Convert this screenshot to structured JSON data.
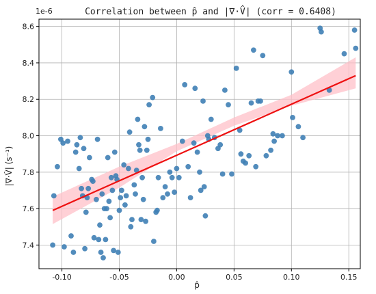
{
  "chart_data": {
    "type": "scatter",
    "title": "Correlation between p̂ and |∇·V̂| (corr = 0.6408)",
    "xlabel": "p̂",
    "ylabel": "|∇·V̂| (s⁻¹)",
    "y_offset_label": "1e-6",
    "xlim": [
      -0.12,
      0.16
    ],
    "ylim": [
      7.27,
      8.64
    ],
    "grid": true,
    "x_ticks": [
      -0.1,
      -0.05,
      0.0,
      0.05,
      0.1,
      0.15
    ],
    "x_tick_labels": [
      "-0.10",
      "-0.05",
      "0.00",
      "0.05",
      "0.10",
      "0.15"
    ],
    "y_ticks": [
      7.4,
      7.6,
      7.8,
      8.0,
      8.2,
      8.4,
      8.6
    ],
    "y_tick_labels": [
      "7.4",
      "7.6",
      "7.8",
      "8.0",
      "8.2",
      "8.4",
      "8.6"
    ],
    "series": [
      {
        "kind": "points",
        "color": "#3f7fb5",
        "points": [
          [
            -0.108,
            7.4
          ],
          [
            -0.107,
            7.67
          ],
          [
            -0.104,
            7.83
          ],
          [
            -0.101,
            7.98
          ],
          [
            -0.099,
            7.96
          ],
          [
            -0.098,
            7.39
          ],
          [
            -0.095,
            7.97
          ],
          [
            -0.092,
            7.45
          ],
          [
            -0.09,
            7.36
          ],
          [
            -0.088,
            7.91
          ],
          [
            -0.087,
            7.95
          ],
          [
            -0.085,
            7.82
          ],
          [
            -0.084,
            7.99
          ],
          [
            -0.083,
            7.71
          ],
          [
            -0.082,
            7.67
          ],
          [
            -0.081,
            7.93
          ],
          [
            -0.08,
            7.38
          ],
          [
            -0.079,
            7.58
          ],
          [
            -0.078,
            7.66
          ],
          [
            -0.077,
            7.71
          ],
          [
            -0.076,
            7.88
          ],
          [
            -0.074,
            7.76
          ],
          [
            -0.073,
            7.75
          ],
          [
            -0.072,
            7.44
          ],
          [
            -0.07,
            7.65
          ],
          [
            -0.069,
            7.98
          ],
          [
            -0.068,
            7.43
          ],
          [
            -0.067,
            7.51
          ],
          [
            -0.066,
            7.36
          ],
          [
            -0.065,
            7.68
          ],
          [
            -0.064,
            7.33
          ],
          [
            -0.063,
            7.6
          ],
          [
            -0.062,
            7.43
          ],
          [
            -0.061,
            7.6
          ],
          [
            -0.06,
            7.88
          ],
          [
            -0.059,
            7.64
          ],
          [
            -0.058,
            7.55
          ],
          [
            -0.057,
            7.77
          ],
          [
            -0.056,
            7.7
          ],
          [
            -0.055,
            7.37
          ],
          [
            -0.054,
            7.91
          ],
          [
            -0.053,
            7.78
          ],
          [
            -0.052,
            7.76
          ],
          [
            -0.051,
            7.36
          ],
          [
            -0.05,
            7.59
          ],
          [
            -0.049,
            7.66
          ],
          [
            -0.048,
            7.7
          ],
          [
            -0.046,
            7.84
          ],
          [
            -0.045,
            7.62
          ],
          [
            -0.044,
            7.67
          ],
          [
            -0.042,
            7.82
          ],
          [
            -0.041,
            8.02
          ],
          [
            -0.04,
            7.5
          ],
          [
            -0.039,
            7.54
          ],
          [
            -0.037,
            7.73
          ],
          [
            -0.036,
            7.68
          ],
          [
            -0.035,
            7.81
          ],
          [
            -0.034,
            8.09
          ],
          [
            -0.033,
            7.95
          ],
          [
            -0.032,
            7.92
          ],
          [
            -0.031,
            7.54
          ],
          [
            -0.03,
            7.77
          ],
          [
            -0.029,
            7.65
          ],
          [
            -0.028,
            8.05
          ],
          [
            -0.027,
            7.53
          ],
          [
            -0.026,
            7.92
          ],
          [
            -0.025,
            7.98
          ],
          [
            -0.024,
            8.17
          ],
          [
            -0.021,
            8.21
          ],
          [
            -0.02,
            7.42
          ],
          [
            -0.018,
            7.58
          ],
          [
            -0.017,
            7.59
          ],
          [
            -0.016,
            7.77
          ],
          [
            -0.014,
            8.04
          ],
          [
            -0.012,
            7.66
          ],
          [
            -0.01,
            7.72
          ],
          [
            -0.008,
            7.68
          ],
          [
            -0.006,
            7.8
          ],
          [
            -0.004,
            7.77
          ],
          [
            -0.002,
            7.69
          ],
          [
            0.0,
            7.82
          ],
          [
            0.002,
            7.77
          ],
          [
            0.005,
            7.97
          ],
          [
            0.007,
            8.28
          ],
          [
            0.01,
            7.83
          ],
          [
            0.012,
            7.66
          ],
          [
            0.015,
            7.96
          ],
          [
            0.016,
            8.26
          ],
          [
            0.018,
            7.91
          ],
          [
            0.02,
            7.8
          ],
          [
            0.021,
            7.7
          ],
          [
            0.023,
            8.19
          ],
          [
            0.024,
            7.72
          ],
          [
            0.025,
            7.56
          ],
          [
            0.027,
            8.0
          ],
          [
            0.028,
            7.98
          ],
          [
            0.03,
            8.09
          ],
          [
            0.033,
            7.99
          ],
          [
            0.036,
            7.93
          ],
          [
            0.038,
            7.95
          ],
          [
            0.04,
            7.79
          ],
          [
            0.042,
            8.25
          ],
          [
            0.045,
            8.17
          ],
          [
            0.048,
            7.79
          ],
          [
            0.052,
            8.37
          ],
          [
            0.055,
            8.03
          ],
          [
            0.056,
            7.9
          ],
          [
            0.058,
            7.86
          ],
          [
            0.06,
            7.85
          ],
          [
            0.063,
            7.89
          ],
          [
            0.065,
            8.18
          ],
          [
            0.067,
            8.47
          ],
          [
            0.069,
            7.83
          ],
          [
            0.071,
            8.19
          ],
          [
            0.073,
            8.19
          ],
          [
            0.075,
            8.44
          ],
          [
            0.078,
            7.89
          ],
          [
            0.082,
            7.92
          ],
          [
            0.084,
            8.01
          ],
          [
            0.085,
            7.97
          ],
          [
            0.088,
            8.0
          ],
          [
            0.092,
            8.0
          ],
          [
            0.1,
            8.35
          ],
          [
            0.101,
            8.1
          ],
          [
            0.106,
            8.05
          ],
          [
            0.11,
            7.99
          ],
          [
            0.125,
            8.59
          ],
          [
            0.126,
            8.57
          ],
          [
            0.133,
            8.25
          ],
          [
            0.146,
            8.45
          ],
          [
            0.155,
            8.58
          ],
          [
            0.156,
            8.48
          ]
        ]
      },
      {
        "kind": "regression",
        "color": "#ee1111",
        "x": [
          -0.108,
          0.156
        ],
        "y": [
          7.59,
          8.33
        ],
        "band": {
          "color": "#ffc0c8",
          "x": [
            -0.108,
            -0.05,
            0.0,
            0.05,
            0.1,
            0.156
          ],
          "lower": [
            7.515,
            7.715,
            7.915,
            8.055,
            8.165,
            8.26
          ],
          "upper": [
            7.665,
            7.83,
            7.955,
            8.1,
            8.225,
            8.43
          ]
        }
      }
    ]
  }
}
